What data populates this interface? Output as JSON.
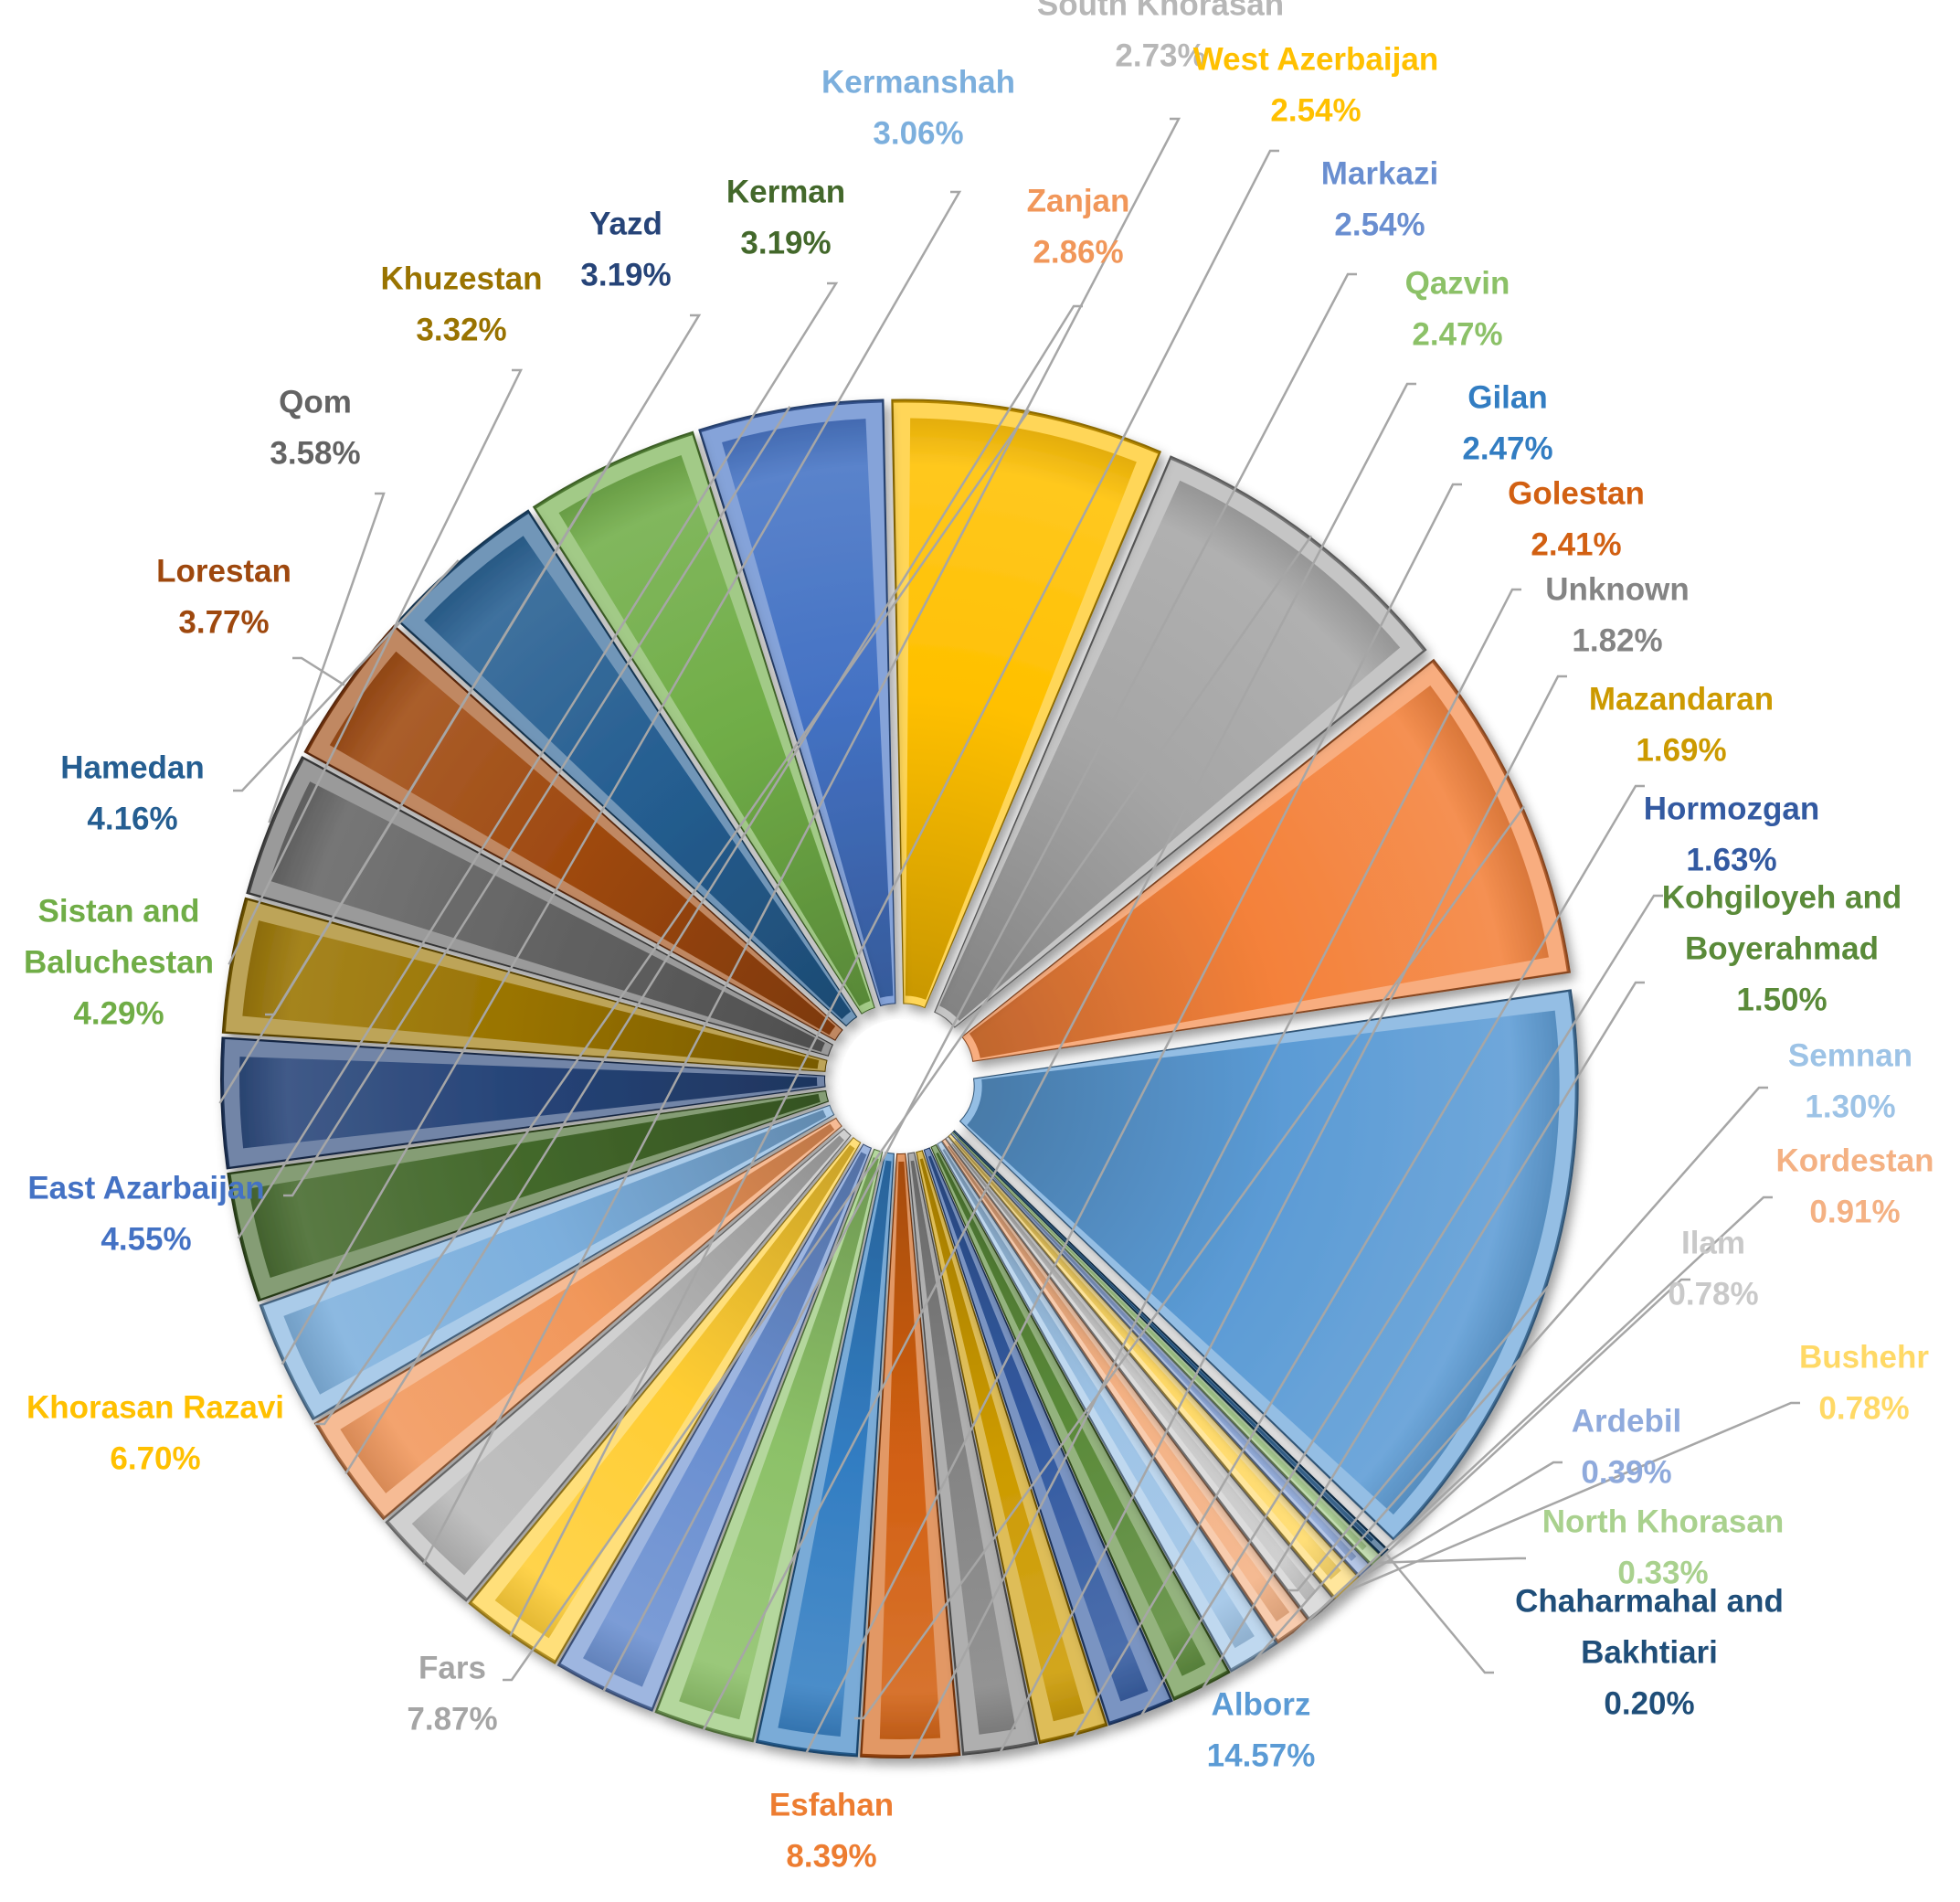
{
  "chart_data": {
    "type": "pie",
    "style": "exploded 3D-beveled pie with white hole at center",
    "slices": [
      {
        "label": "Alborz",
        "value": 14.57,
        "display": "14.57%",
        "color": "#5B9BD5",
        "label_color": "#5B9BD5"
      },
      {
        "label": "Esfahan",
        "value": 8.39,
        "display": "8.39%",
        "color": "#F4813A",
        "label_color": "#ED7D31"
      },
      {
        "label": "Fars",
        "value": 7.87,
        "display": "7.87%",
        "color": "#A5A5A5",
        "label_color": "#A5A5A5"
      },
      {
        "label": "Khorasan Razavi",
        "value": 6.7,
        "display": "6.70%",
        "color": "#FFC000",
        "label_color": "#FFC000"
      },
      {
        "label": "East Azarbaijan",
        "value": 4.55,
        "display": "4.55%",
        "color": "#4472C4",
        "label_color": "#4472C4"
      },
      {
        "label": "Sistan and Baluchestan",
        "display_lines": [
          "Sistan and",
          "Baluchestan"
        ],
        "value": 4.29,
        "display": "4.29%",
        "color": "#70AD47",
        "label_color": "#70AD47"
      },
      {
        "label": "Hamedan",
        "value": 4.16,
        "display": "4.16%",
        "color": "#255E91",
        "label_color": "#255E91"
      },
      {
        "label": "Lorestan",
        "value": 3.77,
        "display": "3.77%",
        "color": "#9E480E",
        "label_color": "#9E480E"
      },
      {
        "label": "Qom",
        "value": 3.58,
        "display": "3.58%",
        "color": "#636363",
        "label_color": "#636363"
      },
      {
        "label": "Khuzestan",
        "value": 3.32,
        "display": "3.32%",
        "color": "#997300",
        "label_color": "#997300"
      },
      {
        "label": "Yazd",
        "value": 3.19,
        "display": "3.19%",
        "color": "#264478",
        "label_color": "#264478"
      },
      {
        "label": "Kerman",
        "value": 3.19,
        "display": "3.19%",
        "color": "#43682B",
        "label_color": "#43682B"
      },
      {
        "label": "Kermanshah",
        "value": 3.06,
        "display": "3.06%",
        "color": "#7CAFDD",
        "label_color": "#7CAFDD"
      },
      {
        "label": "Zanjan",
        "value": 2.86,
        "display": "2.86%",
        "color": "#F1975A",
        "label_color": "#F1975A"
      },
      {
        "label": "South Khorasan",
        "value": 2.73,
        "display": "2.73%",
        "color": "#B7B7B7",
        "label_color": "#B7B7B7"
      },
      {
        "label": "West Azerbaijan",
        "value": 2.54,
        "display": "2.54%",
        "color": "#FFCD33",
        "label_color": "#FFC000"
      },
      {
        "label": "Markazi",
        "value": 2.54,
        "display": "2.54%",
        "color": "#698ED0",
        "label_color": "#698ED0"
      },
      {
        "label": "Qazvin",
        "value": 2.47,
        "display": "2.47%",
        "color": "#8CC168",
        "label_color": "#8CC168"
      },
      {
        "label": "Gilan",
        "value": 2.47,
        "display": "2.47%",
        "color": "#327DC2",
        "label_color": "#327DC2"
      },
      {
        "label": "Golestan",
        "value": 2.41,
        "display": "2.41%",
        "color": "#D26012",
        "label_color": "#D26012"
      },
      {
        "label": "Unknown",
        "value": 1.82,
        "display": "1.82%",
        "color": "#848484",
        "label_color": "#848484"
      },
      {
        "label": "Mazandaran",
        "value": 1.69,
        "display": "1.69%",
        "color": "#CC9A00",
        "label_color": "#CC9A00"
      },
      {
        "label": "Hormozgan",
        "value": 1.63,
        "display": "1.63%",
        "color": "#335AA1",
        "label_color": "#335AA1"
      },
      {
        "label": "Kohgiloyeh and Boyerahmad",
        "display_lines": [
          "Kohgiloyeh and",
          "Boyerahmad"
        ],
        "value": 1.5,
        "display": "1.50%",
        "color": "#5A8A39",
        "label_color": "#5A8A39"
      },
      {
        "label": "Semnan",
        "value": 1.3,
        "display": "1.30%",
        "color": "#9DC3E6",
        "label_color": "#9DC3E6"
      },
      {
        "label": "Kordestan",
        "value": 0.91,
        "display": "0.91%",
        "color": "#F4B183",
        "label_color": "#F4B183"
      },
      {
        "label": "Ilam",
        "value": 0.78,
        "display": "0.78%",
        "color": "#C9C9C9",
        "label_color": "#C9C9C9"
      },
      {
        "label": "Bushehr",
        "value": 0.78,
        "display": "0.78%",
        "color": "#FFD966",
        "label_color": "#FFD966"
      },
      {
        "label": "Ardebil",
        "value": 0.39,
        "display": "0.39%",
        "color": "#8FAADC",
        "label_color": "#8FAADC"
      },
      {
        "label": "North Khorasan",
        "value": 0.33,
        "display": "0.33%",
        "color": "#A9D18E",
        "label_color": "#A9D18E"
      },
      {
        "label": "Chaharmahal and Bakhtiari",
        "display_lines": [
          "Chaharmahal and",
          "Bakhtiari"
        ],
        "value": 0.2,
        "display": "0.20%",
        "color": "#1F4E79",
        "label_color": "#1F4E79"
      }
    ],
    "start_angle_deg": -44,
    "direction": "counterclockwise",
    "legend": "none",
    "data_labels": "outside with leader lines"
  }
}
